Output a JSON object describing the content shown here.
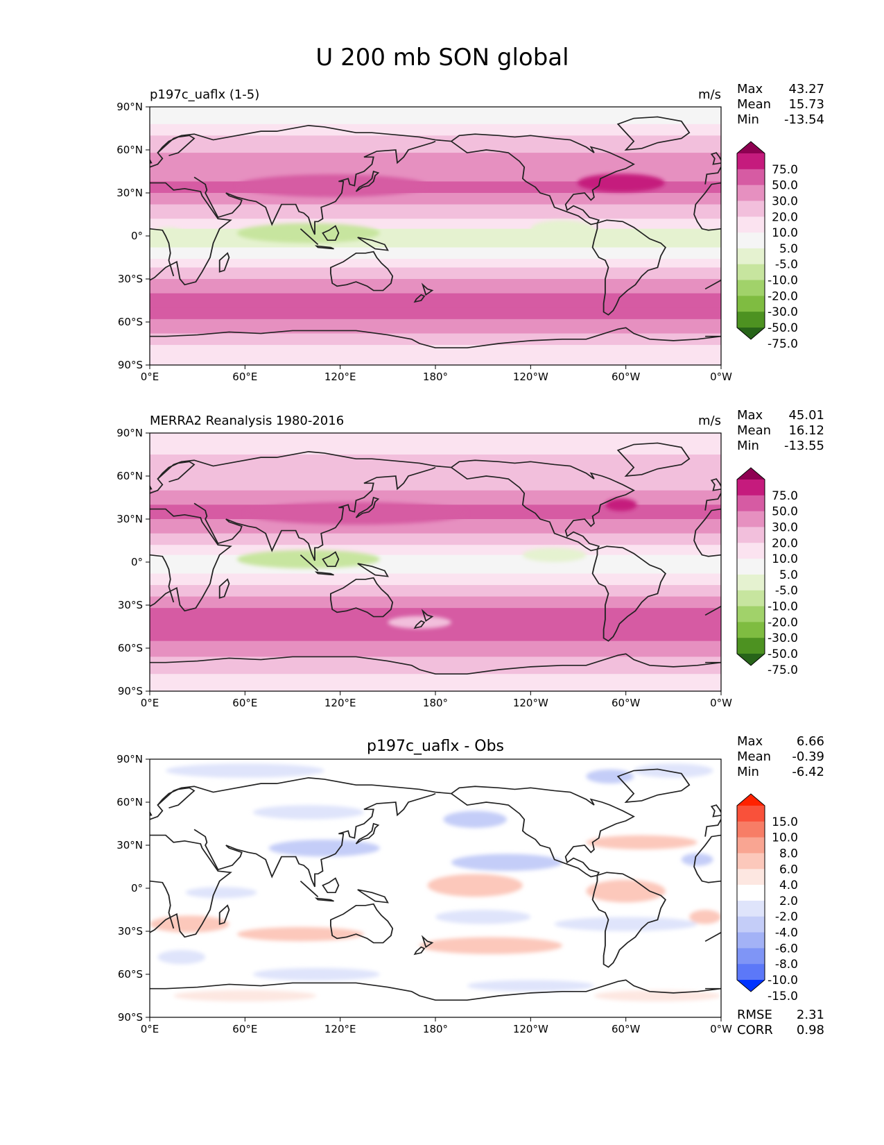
{
  "figure": {
    "title": "U 200 mb SON global"
  },
  "chart_data": [
    {
      "type": "heatmap",
      "panel": "test",
      "title_left": "p197c_uaflx (1-5)",
      "title_center": "",
      "units": "m/s",
      "stats": [
        {
          "label": "Max",
          "value": "43.27"
        },
        {
          "label": "Mean",
          "value": "15.73"
        },
        {
          "label": "Min",
          "value": "-13.54"
        }
      ],
      "xlabels": [
        "0°E",
        "60°E",
        "120°E",
        "180°",
        "120°W",
        "60°W",
        "0°W"
      ],
      "ylabels": [
        "90°N",
        "60°N",
        "30°N",
        "0°",
        "30°S",
        "60°S",
        "90°S"
      ],
      "colorbar": {
        "labels": [
          "75.0",
          "50.0",
          "30.0",
          "20.0",
          "10.0",
          "5.0",
          "-5.0",
          "-10.0",
          "-20.0",
          "-30.0",
          "-50.0",
          "-75.0"
        ],
        "colors": [
          "#8e0152",
          "#c51b7d",
          "#d65ba3",
          "#e690c0",
          "#f2bfdc",
          "#fbe3f0",
          "#f5f5f5",
          "#e5f2d0",
          "#c7e59f",
          "#a1d26a",
          "#7fbc41",
          "#4d9221",
          "#276419"
        ]
      },
      "bands": [
        {
          "lat": 90,
          "level": 6
        },
        {
          "lat": 78,
          "level": 5
        },
        {
          "lat": 70,
          "level": 4
        },
        {
          "lat": 58,
          "level": 3
        },
        {
          "lat": 48,
          "level": 3
        },
        {
          "lat": 38,
          "level": 2
        },
        {
          "lat": 30,
          "level": 3
        },
        {
          "lat": 22,
          "level": 4
        },
        {
          "lat": 12,
          "level": 5
        },
        {
          "lat": 5,
          "level": 7
        },
        {
          "lat": 0,
          "level": 7
        },
        {
          "lat": -8,
          "level": 6
        },
        {
          "lat": -16,
          "level": 5
        },
        {
          "lat": -22,
          "level": 4
        },
        {
          "lat": -30,
          "level": 3
        },
        {
          "lat": -40,
          "level": 2
        },
        {
          "lat": -50,
          "level": 2
        },
        {
          "lat": -58,
          "level": 3
        },
        {
          "lat": -68,
          "level": 4
        },
        {
          "lat": -76,
          "level": 5
        },
        {
          "lat": -90,
          "level": 6
        }
      ],
      "blobs": [
        {
          "lon": 115,
          "lat": 35,
          "w": 120,
          "h": 12,
          "level": 2
        },
        {
          "lon": 297,
          "lat": 37,
          "w": 55,
          "h": 9,
          "level": 1
        },
        {
          "lon": 100,
          "lat": 2,
          "w": 90,
          "h": 10,
          "level": 8
        },
        {
          "lon": 260,
          "lat": 5,
          "w": 40,
          "h": 8,
          "level": 7
        },
        {
          "lon": 12,
          "lat": 1,
          "w": 20,
          "h": 6,
          "level": 7
        }
      ]
    },
    {
      "type": "heatmap",
      "panel": "reference",
      "title_left": "MERRA2 Reanalysis 1980-2016",
      "title_center": "",
      "units": "m/s",
      "stats": [
        {
          "label": "Max",
          "value": "45.01"
        },
        {
          "label": "Mean",
          "value": "16.12"
        },
        {
          "label": "Min",
          "value": "-13.55"
        }
      ],
      "xlabels": [
        "0°E",
        "60°E",
        "120°E",
        "180°",
        "120°W",
        "60°W",
        "0°W"
      ],
      "ylabels": [
        "90°N",
        "60°N",
        "30°N",
        "0°",
        "30°S",
        "60°S",
        "90°S"
      ],
      "colorbar": {
        "labels": [
          "75.0",
          "50.0",
          "30.0",
          "20.0",
          "10.0",
          "5.0",
          "-5.0",
          "-10.0",
          "-20.0",
          "-30.0",
          "-50.0",
          "-75.0"
        ],
        "colors": [
          "#8e0152",
          "#c51b7d",
          "#d65ba3",
          "#e690c0",
          "#f2bfdc",
          "#fbe3f0",
          "#f5f5f5",
          "#e5f2d0",
          "#c7e59f",
          "#a1d26a",
          "#7fbc41",
          "#4d9221",
          "#276419"
        ]
      },
      "bands": [
        {
          "lat": 90,
          "level": 5
        },
        {
          "lat": 75,
          "level": 4
        },
        {
          "lat": 62,
          "level": 4
        },
        {
          "lat": 50,
          "level": 3
        },
        {
          "lat": 40,
          "level": 2
        },
        {
          "lat": 30,
          "level": 3
        },
        {
          "lat": 20,
          "level": 4
        },
        {
          "lat": 12,
          "level": 5
        },
        {
          "lat": 5,
          "level": 6
        },
        {
          "lat": 0,
          "level": 6
        },
        {
          "lat": -8,
          "level": 5
        },
        {
          "lat": -16,
          "level": 4
        },
        {
          "lat": -24,
          "level": 3
        },
        {
          "lat": -32,
          "level": 2
        },
        {
          "lat": -45,
          "level": 2
        },
        {
          "lat": -55,
          "level": 3
        },
        {
          "lat": -66,
          "level": 4
        },
        {
          "lat": -78,
          "level": 5
        },
        {
          "lat": -90,
          "level": 6
        }
      ],
      "blobs": [
        {
          "lon": 130,
          "lat": 34,
          "w": 140,
          "h": 12,
          "level": 2
        },
        {
          "lon": 297,
          "lat": 40,
          "w": 20,
          "h": 5,
          "level": 1
        },
        {
          "lon": 100,
          "lat": 2,
          "w": 90,
          "h": 9,
          "level": 8
        },
        {
          "lon": 255,
          "lat": 5,
          "w": 40,
          "h": 6,
          "level": 7
        },
        {
          "lon": 170,
          "lat": -42,
          "w": 40,
          "h": 5,
          "level": 4
        }
      ]
    },
    {
      "type": "heatmap",
      "panel": "difference",
      "title_left": "",
      "title_center": "p197c_uaflx - Obs",
      "units": "",
      "stats": [
        {
          "label": "Max",
          "value": "6.66"
        },
        {
          "label": "Mean",
          "value": "-0.39"
        },
        {
          "label": "Min",
          "value": "-6.42"
        }
      ],
      "bottom_stats": [
        {
          "label": "RMSE",
          "value": "2.31"
        },
        {
          "label": "CORR",
          "value": "0.98"
        }
      ],
      "xlabels": [
        "0°E",
        "60°E",
        "120°E",
        "180°",
        "120°W",
        "60°W",
        "0°W"
      ],
      "ylabels": [
        "90°N",
        "60°N",
        "30°N",
        "0°",
        "30°S",
        "60°S",
        "90°S"
      ],
      "colorbar": {
        "labels": [
          "15.0",
          "10.0",
          "8.0",
          "6.0",
          "4.0",
          "2.0",
          "-2.0",
          "-4.0",
          "-6.0",
          "-8.0",
          "-10.0",
          "-15.0"
        ],
        "colors": [
          "#ff2200",
          "#f9513a",
          "#f77d66",
          "#f9a592",
          "#fcc8bb",
          "#fde7e1",
          "#ffffff",
          "#dfe4fb",
          "#c4cdf8",
          "#a3b2f6",
          "#7f95f6",
          "#5c78f8",
          "#0033ff"
        ]
      },
      "bands": [
        {
          "lat": 90,
          "level": 6
        },
        {
          "lat": -90,
          "level": 6
        }
      ],
      "blobs": [
        {
          "lon": 60,
          "lat": 82,
          "w": 100,
          "h": 6,
          "level": 7
        },
        {
          "lon": 330,
          "lat": 82,
          "w": 50,
          "h": 6,
          "level": 7
        },
        {
          "lon": 100,
          "lat": 53,
          "w": 70,
          "h": 6,
          "level": 7
        },
        {
          "lon": 205,
          "lat": 48,
          "w": 40,
          "h": 8,
          "level": 8
        },
        {
          "lon": 290,
          "lat": 78,
          "w": 30,
          "h": 6,
          "level": 8
        },
        {
          "lon": 110,
          "lat": 28,
          "w": 70,
          "h": 8,
          "level": 8
        },
        {
          "lon": 225,
          "lat": 18,
          "w": 70,
          "h": 8,
          "level": 8
        },
        {
          "lon": 345,
          "lat": 20,
          "w": 20,
          "h": 5,
          "level": 8
        },
        {
          "lon": 310,
          "lat": 32,
          "w": 70,
          "h": 6,
          "level": 4
        },
        {
          "lon": 205,
          "lat": 2,
          "w": 60,
          "h": 12,
          "level": 4
        },
        {
          "lon": 300,
          "lat": -2,
          "w": 50,
          "h": 12,
          "level": 4
        },
        {
          "lon": 25,
          "lat": -25,
          "w": 50,
          "h": 8,
          "level": 4
        },
        {
          "lon": 95,
          "lat": -32,
          "w": 80,
          "h": 6,
          "level": 4
        },
        {
          "lon": 215,
          "lat": -40,
          "w": 90,
          "h": 8,
          "level": 4
        },
        {
          "lon": 350,
          "lat": -20,
          "w": 20,
          "h": 6,
          "level": 4
        },
        {
          "lon": 45,
          "lat": -3,
          "w": 45,
          "h": 4,
          "level": 7
        },
        {
          "lon": 210,
          "lat": -20,
          "w": 60,
          "h": 6,
          "level": 7
        },
        {
          "lon": 300,
          "lat": -25,
          "w": 90,
          "h": 6,
          "level": 7
        },
        {
          "lon": 20,
          "lat": -48,
          "w": 30,
          "h": 6,
          "level": 7
        },
        {
          "lon": 105,
          "lat": -60,
          "w": 80,
          "h": 5,
          "level": 7
        },
        {
          "lon": 240,
          "lat": -68,
          "w": 80,
          "h": 4,
          "level": 7
        },
        {
          "lon": 60,
          "lat": -75,
          "w": 90,
          "h": 4,
          "level": 5
        },
        {
          "lon": 320,
          "lat": -75,
          "w": 80,
          "h": 4,
          "level": 5
        }
      ]
    }
  ]
}
